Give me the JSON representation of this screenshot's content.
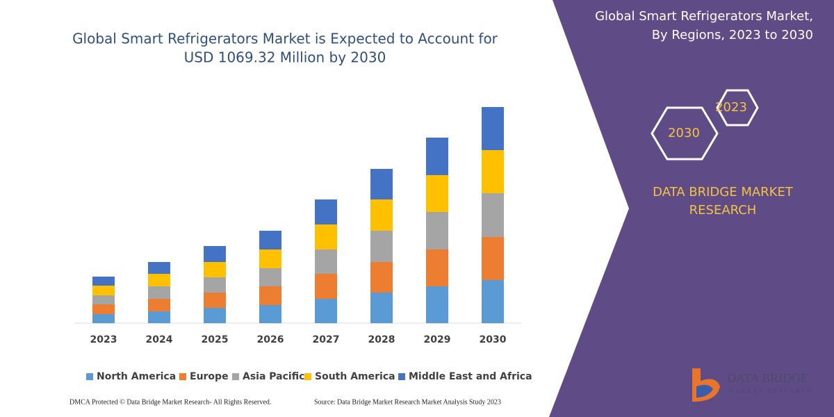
{
  "chart_data": {
    "type": "stacked_bar",
    "title_lines": [
      "Global Smart Refrigerators Market is Expected to Account for",
      "USD 1069.32 Million by 2030"
    ],
    "categories": [
      "2023",
      "2024",
      "2025",
      "2026",
      "2027",
      "2028",
      "2029",
      "2030"
    ],
    "series": [
      {
        "name": "North America",
        "color": "#5b9bd5",
        "values": [
          13,
          17,
          22,
          26,
          35,
          44,
          53,
          62
        ]
      },
      {
        "name": "Europe",
        "color": "#ed7d31",
        "values": [
          14,
          18,
          22,
          27,
          36,
          44,
          53,
          62
        ]
      },
      {
        "name": "Asia Pacific",
        "color": "#a5a5a5",
        "values": [
          13,
          18,
          22,
          26,
          35,
          45,
          54,
          63
        ]
      },
      {
        "name": "South America",
        "color": "#ffc000",
        "values": [
          14,
          18,
          22,
          27,
          36,
          45,
          53,
          62
        ]
      },
      {
        "name": "Middle East and Africa",
        "color": "#4472c4",
        "values": [
          13,
          17,
          23,
          27,
          36,
          44,
          54,
          62
        ]
      }
    ]
  },
  "panel": {
    "title_lines": [
      "Global Smart Refrigerators Market,",
      "By Regions, 2023 to 2030"
    ],
    "hexagons": [
      "2023",
      "2030"
    ],
    "brand_lines": [
      "DATA BRIDGE MARKET",
      "RESEARCH"
    ],
    "logo_lines": [
      "DATA BRIDGE",
      "MARKET RESEARCH"
    ]
  },
  "footer": {
    "left": "DMCA Protected © Data Bridge Market Research- All Rights Reserved.",
    "right": "Source: Data Bridge Market Research Market Analysis Study 2023"
  }
}
